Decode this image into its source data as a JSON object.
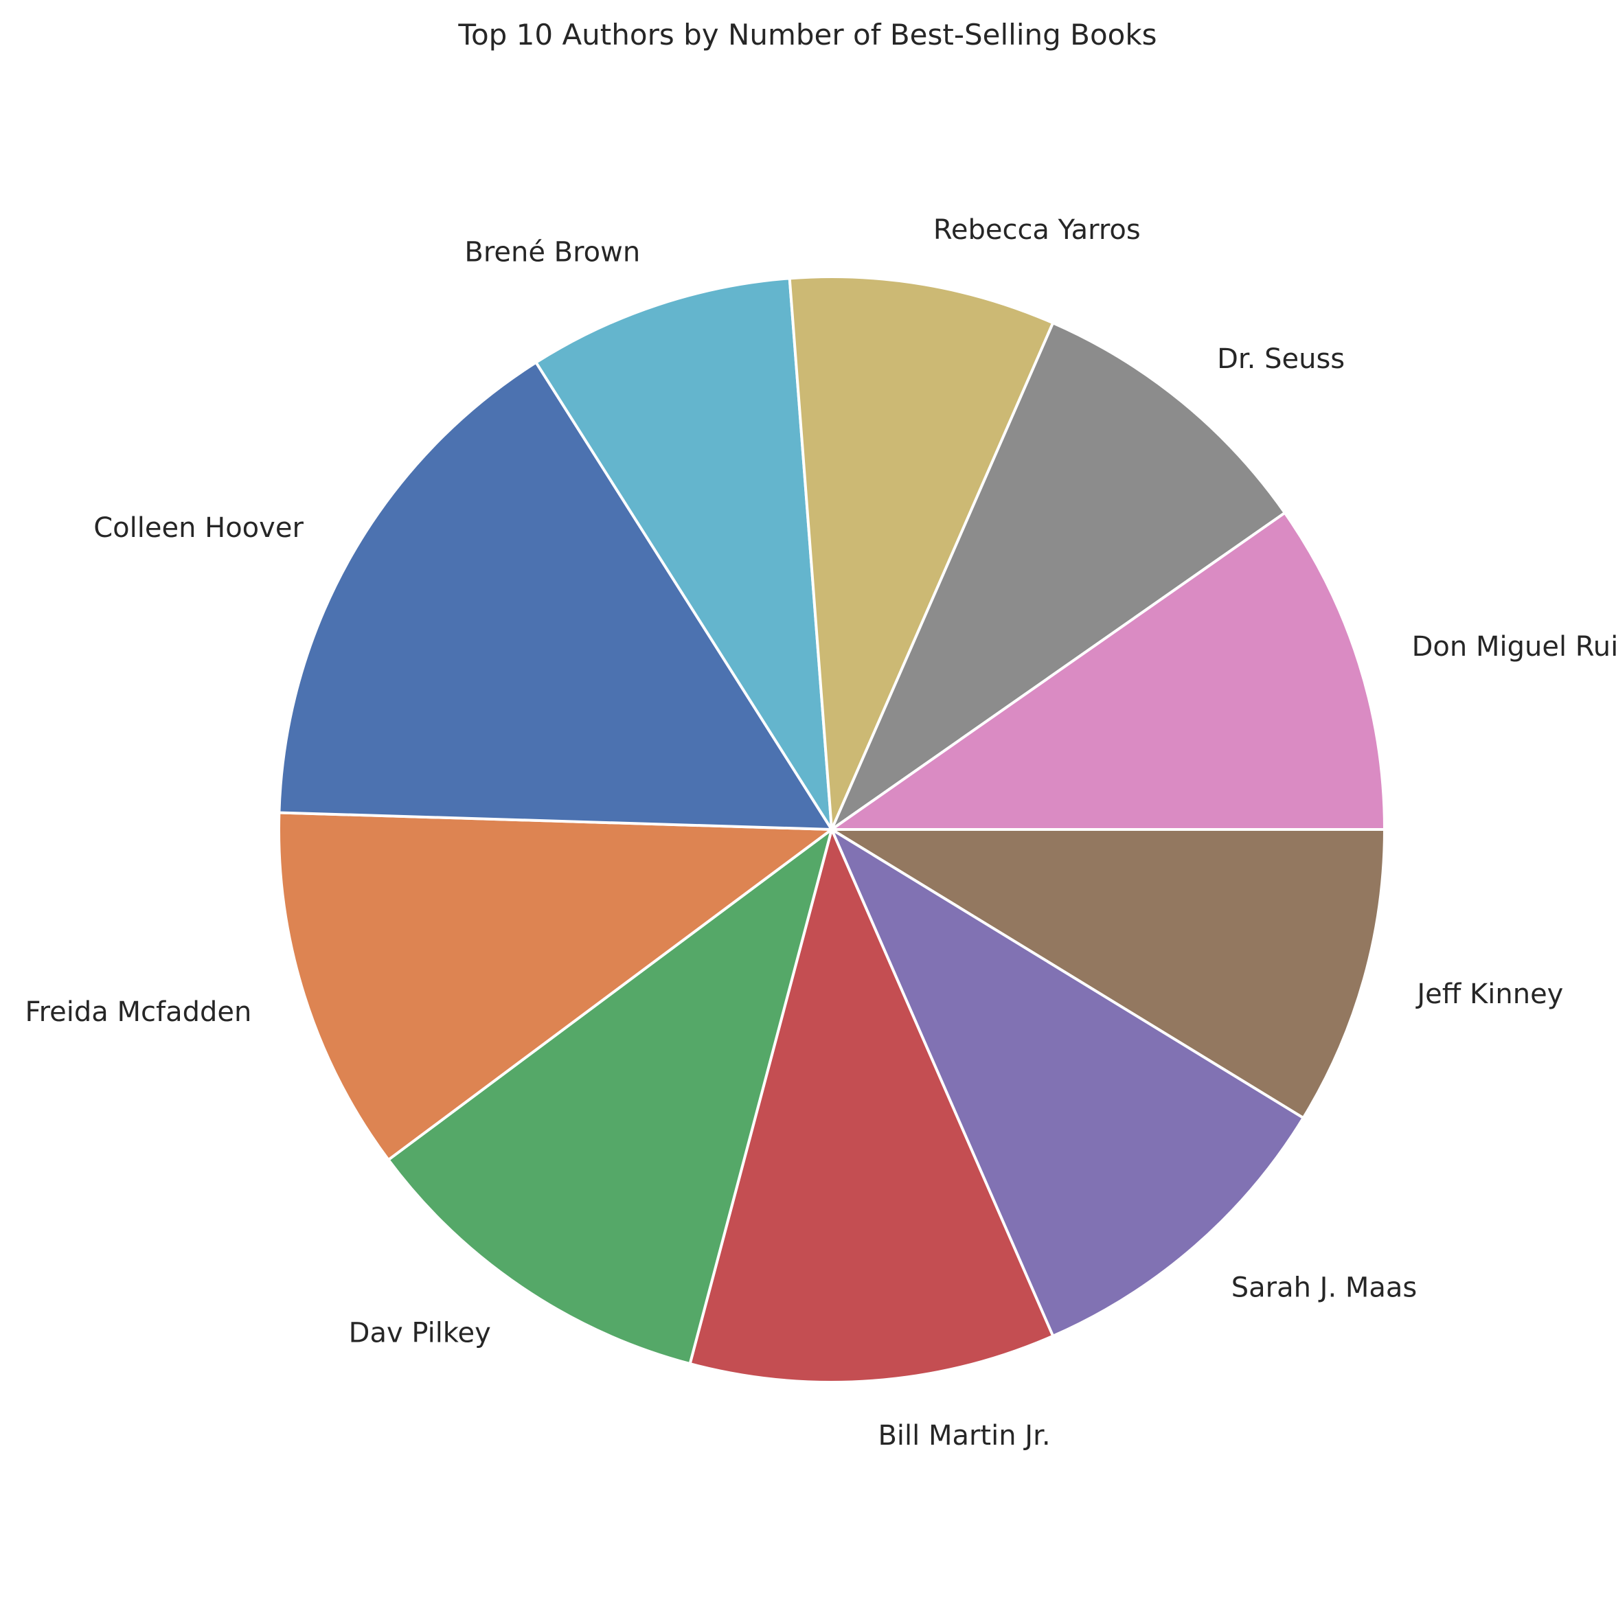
{
  "chart_data": {
    "type": "pie",
    "title": "Top 10 Authors by Number of Best-Selling Books",
    "start_angle_deg": 0,
    "direction": "clockwise",
    "slices": [
      {
        "label": "Jeff Kinney",
        "value": 9,
        "color": "#937860"
      },
      {
        "label": "Sarah J. Maas",
        "value": 10,
        "color": "#8172b3"
      },
      {
        "label": "Bill Martin Jr.",
        "value": 11,
        "color": "#c44e52"
      },
      {
        "label": "Dav Pilkey",
        "value": 11,
        "color": "#55a868"
      },
      {
        "label": "Freida Mcfadden",
        "value": 11,
        "color": "#dd8452"
      },
      {
        "label": "Colleen Hoover",
        "value": 16,
        "color": "#4c72b0"
      },
      {
        "label": "Brené Brown",
        "value": 8,
        "color": "#64b5cd"
      },
      {
        "label": "Rebecca Yarros",
        "value": 8,
        "color": "#ccb974"
      },
      {
        "label": "Dr. Seuss",
        "value": 9,
        "color": "#8c8c8c"
      },
      {
        "label": "Don Miguel Ruiz",
        "value": 10,
        "color": "#da8bc3"
      }
    ]
  }
}
